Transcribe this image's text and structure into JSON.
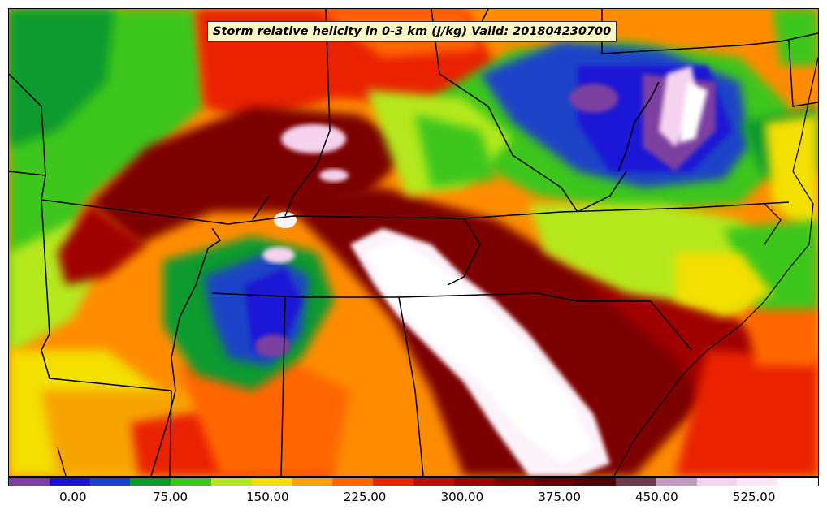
{
  "title": "Storm relative helicity in 0-3 km (J/kg) Valid: 201804230700",
  "colorbar": {
    "colors": [
      "#7b3fa0",
      "#1a13d6",
      "#1f43c8",
      "#0d9a2d",
      "#3cc61c",
      "#b4e81a",
      "#f3df00",
      "#f7a400",
      "#ff6600",
      "#ea2200",
      "#c40c00",
      "#a00000",
      "#7c0000",
      "#5e0000",
      "#4a0406",
      "#6e3b4c",
      "#c39ac1",
      "#f5d2ee",
      "#fbe7f6",
      "#ffffff"
    ],
    "ticks": [
      {
        "label": "0.00",
        "value": 0
      },
      {
        "label": "75.00",
        "value": 75
      },
      {
        "label": "150.00",
        "value": 150
      },
      {
        "label": "225.00",
        "value": 225
      },
      {
        "label": "300.00",
        "value": 300
      },
      {
        "label": "375.00",
        "value": 375
      },
      {
        "label": "450.00",
        "value": 450
      },
      {
        "label": "525.00",
        "value": 525
      }
    ],
    "min": -50,
    "max": 575
  }
}
